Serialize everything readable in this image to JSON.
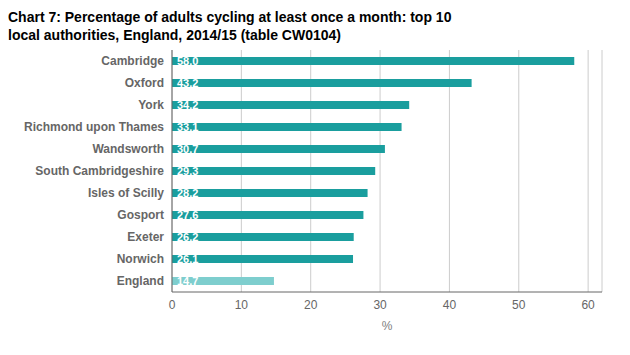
{
  "chart_data": {
    "type": "bar",
    "orientation": "horizontal",
    "title": "Chart 7: Percentage of adults cycling at least once a month: top 10",
    "subtitle": "local authorities, England, 2014/15 (table CW0104)",
    "categories": [
      "Cambridge",
      "Oxford",
      "York",
      "Richmond upon Thames",
      "Wandsworth",
      "South Cambridgeshire",
      "Isles of Scilly",
      "Gosport",
      "Exeter",
      "Norwich",
      "England"
    ],
    "values": [
      58.0,
      43.2,
      34.2,
      33.1,
      30.7,
      29.3,
      28.2,
      27.6,
      26.2,
      26.1,
      14.7
    ],
    "value_labels": [
      "58.0",
      "43.2",
      "34.2",
      "33.1",
      "30.7",
      "29.3",
      "28.2",
      "27.6",
      "26.2",
      "26.1",
      "14.7"
    ],
    "colors": [
      "#1a9e9e",
      "#1a9e9e",
      "#1a9e9e",
      "#1a9e9e",
      "#1a9e9e",
      "#1a9e9e",
      "#1a9e9e",
      "#1a9e9e",
      "#1a9e9e",
      "#1a9e9e",
      "#7ecece"
    ],
    "xlabel": "%",
    "xlim": [
      0,
      62
    ],
    "xticks": [
      0,
      10,
      20,
      30,
      40,
      50,
      60
    ],
    "grid": true,
    "data_labels": true
  }
}
